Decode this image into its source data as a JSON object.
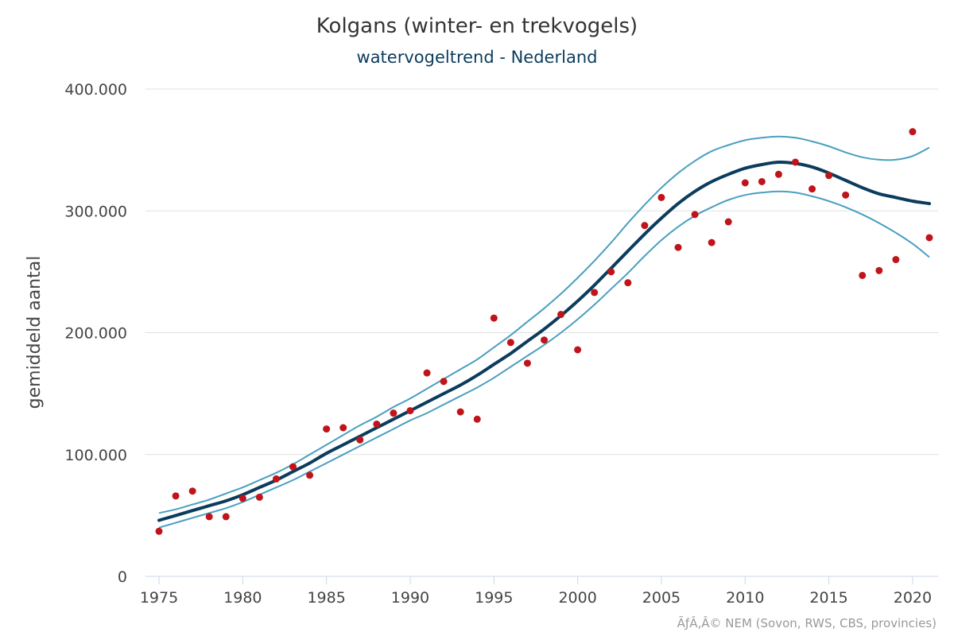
{
  "chart_data": {
    "type": "line",
    "title": "Kolgans (winter- en trekvogels)",
    "subtitle": "watervogeltrend - Nederland",
    "ylabel": "gemiddeld aantal",
    "xlabel": "",
    "xlim": [
      1975,
      2021
    ],
    "ylim": [
      0,
      400000
    ],
    "x_ticks": [
      1975,
      1980,
      1985,
      1990,
      1995,
      2000,
      2005,
      2010,
      2015,
      2020
    ],
    "x_tick_labels": [
      "1975",
      "1980",
      "1985",
      "1990",
      "1995",
      "2000",
      "2005",
      "2010",
      "2015",
      "2020"
    ],
    "y_ticks": [
      0,
      100000,
      200000,
      300000,
      400000
    ],
    "y_tick_labels": [
      "0",
      "100.000",
      "200.000",
      "300.000",
      "400.000"
    ],
    "grid": true,
    "credits": "ÃƒÂ‚Â© NEM (Sovon, RWS, CBS, provincies)",
    "colors": {
      "trend": "#0b3c5d",
      "ci": "#4a9fc0",
      "points": "#c0141b",
      "grid": "#e0e0e0",
      "axis": "#ccd6eb"
    },
    "series": [
      {
        "name": "indexwaarden",
        "kind": "scatter",
        "x": [
          1975,
          1976,
          1977,
          1978,
          1979,
          1980,
          1981,
          1982,
          1983,
          1984,
          1985,
          1986,
          1987,
          1988,
          1989,
          1990,
          1991,
          1992,
          1993,
          1994,
          1995,
          1996,
          1997,
          1998,
          1999,
          2000,
          2001,
          2002,
          2003,
          2004,
          2005,
          2006,
          2007,
          2008,
          2009,
          2010,
          2011,
          2012,
          2013,
          2014,
          2015,
          2016,
          2017,
          2018,
          2019,
          2020,
          2021
        ],
        "values": [
          37000,
          66000,
          70000,
          49000,
          49000,
          64000,
          65000,
          80000,
          90000,
          83000,
          121000,
          122000,
          112000,
          125000,
          134000,
          136000,
          167000,
          160000,
          135000,
          129000,
          212000,
          192000,
          175000,
          194000,
          215000,
          186000,
          233000,
          250000,
          241000,
          288000,
          311000,
          270000,
          297000,
          274000,
          291000,
          323000,
          324000,
          330000,
          340000,
          318000,
          329000,
          313000,
          247000,
          251000,
          260000,
          365000,
          278000
        ]
      },
      {
        "name": "trend",
        "kind": "line",
        "x": [
          1975,
          1976,
          1977,
          1978,
          1979,
          1980,
          1981,
          1982,
          1983,
          1984,
          1985,
          1986,
          1987,
          1988,
          1989,
          1990,
          1991,
          1992,
          1993,
          1994,
          1995,
          1996,
          1997,
          1998,
          1999,
          2000,
          2001,
          2002,
          2003,
          2004,
          2005,
          2006,
          2007,
          2008,
          2009,
          2010,
          2011,
          2012,
          2013,
          2014,
          2015,
          2016,
          2017,
          2018,
          2019,
          2020,
          2021
        ],
        "values": [
          46000,
          50000,
          54000,
          58000,
          62000,
          67000,
          73000,
          79000,
          86000,
          93000,
          101000,
          108000,
          115000,
          122000,
          129000,
          136000,
          143000,
          150000,
          157000,
          165000,
          174000,
          183000,
          193000,
          203000,
          214000,
          226000,
          239000,
          253000,
          267000,
          281000,
          294000,
          306000,
          316000,
          324000,
          330000,
          335000,
          338000,
          340000,
          339000,
          336000,
          331000,
          325000,
          319000,
          314000,
          311000,
          308000,
          306000
        ]
      },
      {
        "name": "bovengrens",
        "kind": "line",
        "x": [
          1975,
          1976,
          1977,
          1978,
          1979,
          1980,
          1981,
          1982,
          1983,
          1984,
          1985,
          1986,
          1987,
          1988,
          1989,
          1990,
          1991,
          1992,
          1993,
          1994,
          1995,
          1996,
          1997,
          1998,
          1999,
          2000,
          2001,
          2002,
          2003,
          2004,
          2005,
          2006,
          2007,
          2008,
          2009,
          2010,
          2011,
          2012,
          2013,
          2014,
          2015,
          2016,
          2017,
          2018,
          2019,
          2020,
          2021
        ],
        "values": [
          52000,
          55000,
          59000,
          63000,
          68000,
          73000,
          79000,
          85000,
          92000,
          100000,
          108000,
          116000,
          124000,
          131000,
          139000,
          146000,
          154000,
          162000,
          170000,
          178000,
          188000,
          198000,
          209000,
          220000,
          232000,
          245000,
          259000,
          274000,
          290000,
          305000,
          319000,
          331000,
          341000,
          349000,
          354000,
          358000,
          360000,
          361000,
          360000,
          357000,
          353000,
          348000,
          344000,
          342000,
          342000,
          345000,
          352000
        ]
      },
      {
        "name": "ondergrens",
        "kind": "line",
        "x": [
          1975,
          1976,
          1977,
          1978,
          1979,
          1980,
          1981,
          1982,
          1983,
          1984,
          1985,
          1986,
          1987,
          1988,
          1989,
          1990,
          1991,
          1992,
          1993,
          1994,
          1995,
          1996,
          1997,
          1998,
          1999,
          2000,
          2001,
          2002,
          2003,
          2004,
          2005,
          2006,
          2007,
          2008,
          2009,
          2010,
          2011,
          2012,
          2013,
          2014,
          2015,
          2016,
          2017,
          2018,
          2019,
          2020,
          2021
        ],
        "values": [
          40000,
          44000,
          48000,
          52000,
          56000,
          61000,
          67000,
          73000,
          79000,
          86000,
          93000,
          100000,
          107000,
          114000,
          121000,
          128000,
          134000,
          141000,
          148000,
          155000,
          163000,
          172000,
          181000,
          190000,
          200000,
          211000,
          223000,
          236000,
          249000,
          263000,
          276000,
          287000,
          296000,
          303000,
          309000,
          313000,
          315000,
          316000,
          315000,
          312000,
          308000,
          303000,
          297000,
          290000,
          282000,
          273000,
          262000
        ]
      }
    ]
  }
}
